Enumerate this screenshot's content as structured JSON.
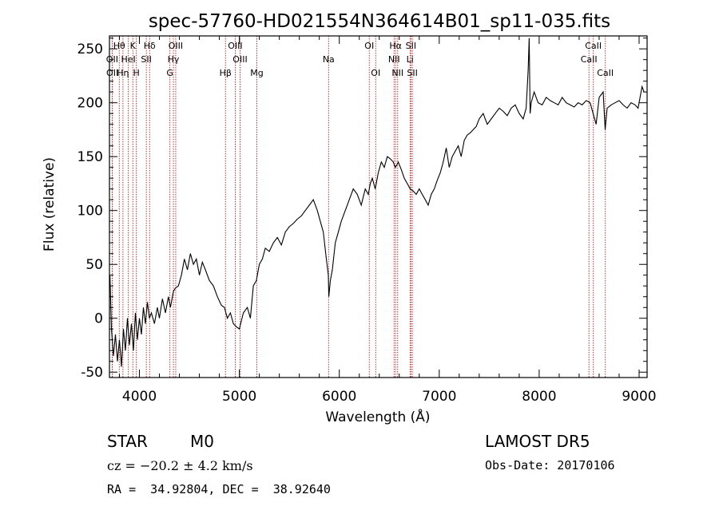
{
  "chart_data": {
    "type": "line",
    "title": "spec-57760-HD021554N364614B01_sp11-035.fits",
    "xlabel": "Wavelength (Å)",
    "ylabel": "Flux (relative)",
    "xlim": [
      3700,
      9080
    ],
    "ylim": [
      -55,
      262
    ],
    "x_ticks": [
      4000,
      5000,
      6000,
      7000,
      8000,
      9000
    ],
    "y_ticks": [
      -50,
      0,
      50,
      100,
      150,
      200,
      250
    ],
    "grid": false,
    "line_color": "#000000",
    "marker_color": "#b22222",
    "series": [
      {
        "x": [
          3705,
          3720,
          3740,
          3760,
          3780,
          3800,
          3820,
          3840,
          3860,
          3880,
          3900,
          3920,
          3940,
          3960,
          3980,
          4000,
          4020,
          4040,
          4060,
          4080,
          4100,
          4120,
          4150,
          4180,
          4200,
          4230,
          4260,
          4290,
          4310,
          4340,
          4360,
          4390,
          4420,
          4450,
          4480,
          4510,
          4540,
          4570,
          4600,
          4630,
          4660,
          4700,
          4740,
          4780,
          4820,
          4850,
          4880,
          4910,
          4940,
          4970,
          5000,
          5040,
          5080,
          5110,
          5140,
          5170,
          5200,
          5230,
          5260,
          5300,
          5340,
          5380,
          5420,
          5460,
          5500,
          5540,
          5580,
          5620,
          5660,
          5700,
          5740,
          5780,
          5810,
          5840,
          5870,
          5890,
          5895,
          5910,
          5930,
          5960,
          5990,
          6020,
          6060,
          6100,
          6140,
          6180,
          6220,
          6260,
          6290,
          6310,
          6330,
          6360,
          6390,
          6420,
          6450,
          6480,
          6510,
          6540,
          6560,
          6575,
          6590,
          6620,
          6650,
          6680,
          6710,
          6740,
          6770,
          6800,
          6830,
          6860,
          6890,
          6920,
          6950,
          6980,
          7010,
          7040,
          7070,
          7100,
          7130,
          7160,
          7190,
          7220,
          7250,
          7280,
          7310,
          7340,
          7370,
          7400,
          7440,
          7480,
          7520,
          7560,
          7600,
          7640,
          7680,
          7720,
          7760,
          7800,
          7840,
          7870,
          7890,
          7900,
          7910,
          7920,
          7950,
          7990,
          8030,
          8070,
          8110,
          8150,
          8190,
          8230,
          8270,
          8310,
          8350,
          8390,
          8430,
          8470,
          8510,
          8540,
          8570,
          8600,
          8640,
          8660,
          8680,
          8720,
          8760,
          8800,
          8840,
          8880,
          8920,
          8960,
          8990,
          9010,
          9030,
          9050
        ],
        "y": [
          40,
          -10,
          -35,
          -15,
          -40,
          -20,
          -45,
          -10,
          -30,
          0,
          -25,
          -5,
          -30,
          5,
          -20,
          0,
          -15,
          10,
          -5,
          15,
          0,
          5,
          -5,
          10,
          0,
          18,
          5,
          20,
          10,
          25,
          28,
          30,
          40,
          55,
          45,
          60,
          50,
          55,
          40,
          52,
          45,
          35,
          30,
          20,
          12,
          10,
          0,
          5,
          -5,
          -8,
          -10,
          5,
          10,
          0,
          30,
          35,
          50,
          55,
          65,
          62,
          70,
          75,
          68,
          80,
          85,
          88,
          92,
          95,
          100,
          105,
          110,
          100,
          90,
          80,
          55,
          40,
          20,
          35,
          45,
          70,
          80,
          90,
          100,
          110,
          120,
          115,
          105,
          120,
          115,
          125,
          130,
          120,
          135,
          145,
          140,
          150,
          148,
          145,
          140,
          142,
          145,
          138,
          130,
          125,
          120,
          118,
          115,
          120,
          115,
          110,
          105,
          115,
          120,
          128,
          135,
          145,
          158,
          140,
          150,
          155,
          160,
          150,
          165,
          170,
          172,
          175,
          178,
          185,
          190,
          180,
          185,
          190,
          195,
          192,
          188,
          195,
          198,
          190,
          185,
          195,
          230,
          260,
          190,
          200,
          210,
          200,
          198,
          205,
          202,
          200,
          198,
          205,
          200,
          198,
          196,
          200,
          198,
          202,
          200,
          190,
          180,
          205,
          210,
          175,
          195,
          198,
          200,
          202,
          198,
          195,
          200,
          198,
          195,
          205,
          215,
          210
        ]
      }
    ],
    "line_labels": [
      {
        "name": "Hθ",
        "w": 3798,
        "row": 0
      },
      {
        "name": "K",
        "w": 3934,
        "row": 0
      },
      {
        "name": "Hδ",
        "w": 4102,
        "row": 0
      },
      {
        "name": "OIII",
        "w": 4363,
        "row": 0
      },
      {
        "name": "OIII",
        "w": 4959,
        "row": 0
      },
      {
        "name": "OI",
        "w": 6300,
        "row": 0
      },
      {
        "name": "Hα",
        "w": 6563,
        "row": 0
      },
      {
        "name": "SII",
        "w": 6717,
        "row": 0
      },
      {
        "name": "CaII",
        "w": 8542,
        "row": 0
      },
      {
        "name": "OII",
        "w": 3727,
        "row": 1
      },
      {
        "name": "HeI",
        "w": 3889,
        "row": 1
      },
      {
        "name": "SII",
        "w": 4069,
        "row": 1
      },
      {
        "name": "Hγ",
        "w": 4340,
        "row": 1
      },
      {
        "name": "OIII",
        "w": 5007,
        "row": 1
      },
      {
        "name": "Na",
        "w": 5893,
        "row": 1
      },
      {
        "name": "NII",
        "w": 6548,
        "row": 1
      },
      {
        "name": "Li",
        "w": 6708,
        "row": 1
      },
      {
        "name": "CaII",
        "w": 8498,
        "row": 1
      },
      {
        "name": "OII",
        "w": 3729,
        "row": 2
      },
      {
        "name": "Hη",
        "w": 3835,
        "row": 2
      },
      {
        "name": "H",
        "w": 3969,
        "row": 2
      },
      {
        "name": "G",
        "w": 4305,
        "row": 2
      },
      {
        "name": "Hβ",
        "w": 4861,
        "row": 2
      },
      {
        "name": "Mg",
        "w": 5175,
        "row": 2
      },
      {
        "name": "OI",
        "w": 6364,
        "row": 2
      },
      {
        "name": "NII",
        "w": 6584,
        "row": 2
      },
      {
        "name": "SII",
        "w": 6731,
        "row": 2
      },
      {
        "name": "CaII",
        "w": 8662,
        "row": 2
      }
    ],
    "marker_lines": [
      3727,
      3729,
      3798,
      3835,
      3889,
      3934,
      3969,
      4069,
      4102,
      4305,
      4340,
      4363,
      4861,
      4959,
      5007,
      5175,
      5893,
      6300,
      6364,
      6548,
      6563,
      6584,
      6708,
      6717,
      6731,
      8498,
      8542,
      8662
    ]
  },
  "info": {
    "object_class": "STAR",
    "subclass": "M0",
    "survey": "LAMOST DR5",
    "cz": "cz = −20.2 ± 4.2 km/s",
    "obs_date": "Obs-Date: 20170106",
    "coords": "RA =  34.92804, DEC =  38.92640"
  }
}
